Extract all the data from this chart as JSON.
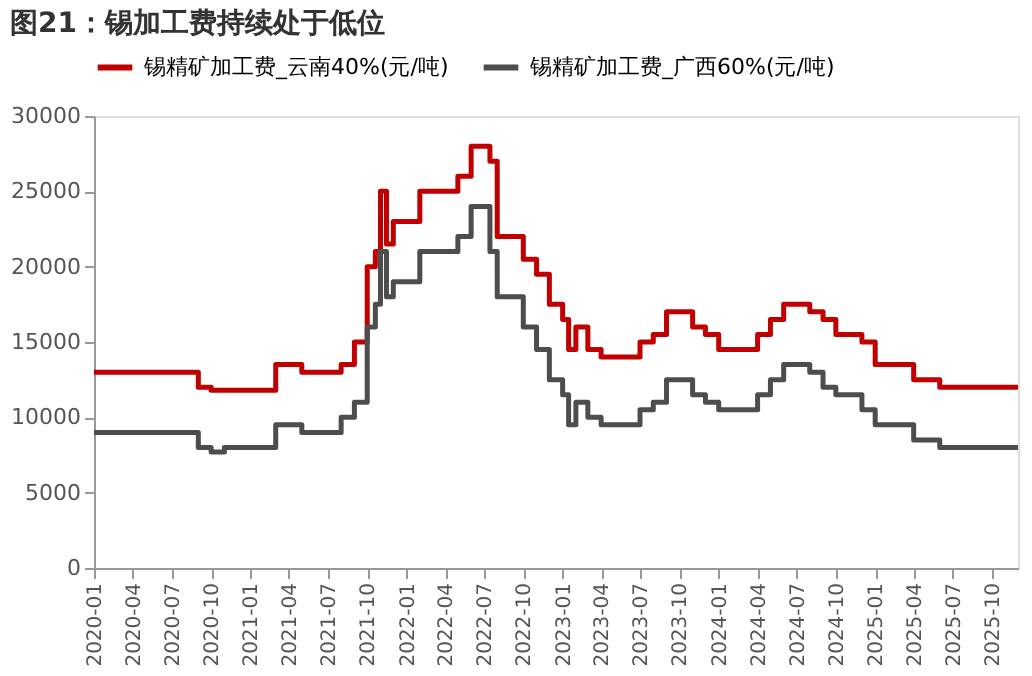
{
  "chart_data": {
    "type": "step",
    "title": "图21：锡加工费持续处于低位",
    "x": [
      "2020-01",
      "2020-09",
      "2020-10",
      "2020-11",
      "2021-03",
      "2021-05",
      "2021-08",
      "2021-09",
      "2021-10",
      "2021-10-20",
      "2021-11",
      "2021-11-15",
      "2021-12",
      "2022-02",
      "2022-05",
      "2022-06",
      "2022-07-15",
      "2022-08",
      "2022-10",
      "2022-11",
      "2022-12",
      "2023-01",
      "2023-01-15",
      "2023-02",
      "2023-03",
      "2023-04",
      "2023-07",
      "2023-08",
      "2023-09",
      "2023-11",
      "2023-12",
      "2024-01",
      "2024-04",
      "2024-05",
      "2024-06",
      "2024-08",
      "2024-09",
      "2024-10",
      "2024-12",
      "2025-01",
      "2025-04",
      "2025-06",
      "2025-12"
    ],
    "series": [
      {
        "name": "锡精矿加工费_云南40%(元/吨)",
        "color": "#c00000",
        "values": [
          13000,
          12000,
          11800,
          11800,
          13500,
          13000,
          13500,
          15000,
          20000,
          21000,
          25000,
          21500,
          23000,
          25000,
          26000,
          28000,
          27000,
          22000,
          20500,
          19500,
          17500,
          16500,
          14500,
          16000,
          14500,
          14000,
          15000,
          15500,
          17000,
          16000,
          15500,
          14500,
          15500,
          16500,
          17500,
          17000,
          16500,
          15500,
          15000,
          13500,
          12500,
          12000,
          12000
        ]
      },
      {
        "name": "锡精矿加工费_广西60%(元/吨)",
        "color": "#4d4d4d",
        "values": [
          9000,
          8000,
          7700,
          8000,
          9500,
          9000,
          10000,
          11000,
          16000,
          17500,
          21000,
          18000,
          19000,
          21000,
          22000,
          24000,
          21000,
          18000,
          16000,
          14500,
          12500,
          11500,
          9500,
          11000,
          10000,
          9500,
          10500,
          11000,
          12500,
          11500,
          11000,
          10500,
          11500,
          12500,
          13500,
          13000,
          12000,
          11500,
          10500,
          9500,
          8500,
          8000,
          8000
        ]
      }
    ],
    "xlim": [
      "2020-01",
      "2025-12"
    ],
    "xticks": [
      "2020-01",
      "2020-04",
      "2020-07",
      "2020-10",
      "2021-01",
      "2021-04",
      "2021-07",
      "2021-10",
      "2022-01",
      "2022-04",
      "2022-07",
      "2022-10",
      "2023-01",
      "2023-04",
      "2023-07",
      "2023-10",
      "2024-01",
      "2024-04",
      "2024-07",
      "2024-10",
      "2025-01",
      "2025-04",
      "2025-07",
      "2025-10"
    ],
    "ylim": [
      0,
      30000
    ],
    "yticks": [
      0,
      5000,
      10000,
      15000,
      20000,
      25000,
      30000
    ],
    "grid": false,
    "legend": "top",
    "line_style": "solid",
    "marker": "none"
  }
}
